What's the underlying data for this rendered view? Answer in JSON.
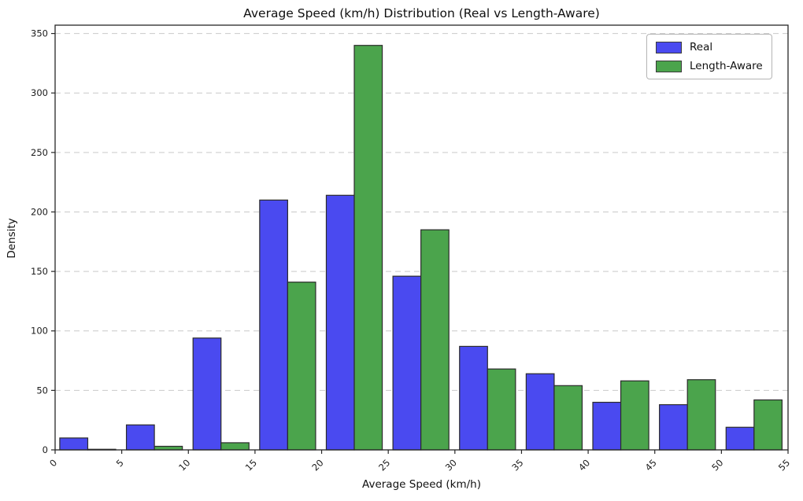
{
  "chart_data": {
    "type": "bar",
    "title": "Average Speed (km/h) Distribution (Real vs Length-Aware)",
    "xlabel": "Average Speed (km/h)",
    "ylabel": "Density",
    "bin_edges": [
      0,
      5,
      10,
      15,
      20,
      25,
      30,
      35,
      40,
      45,
      50,
      55
    ],
    "categories": [
      "0-5",
      "5-10",
      "10-15",
      "15-20",
      "20-25",
      "25-30",
      "30-35",
      "35-40",
      "40-45",
      "45-50",
      "50-55"
    ],
    "series": [
      {
        "name": "Real",
        "color": "#4a4af0",
        "values": [
          10,
          21,
          94,
          210,
          214,
          146,
          87,
          64,
          40,
          38,
          19
        ]
      },
      {
        "name": "Length-Aware",
        "color": "#4ba44c",
        "values": [
          0.5,
          3,
          6,
          141,
          340,
          185,
          68,
          54,
          58,
          59,
          42
        ]
      }
    ],
    "xlim": [
      0,
      55
    ],
    "ylim": [
      0,
      357
    ],
    "xticks": [
      0,
      5,
      10,
      15,
      20,
      25,
      30,
      35,
      40,
      45,
      50,
      55
    ],
    "yticks": [
      0,
      50,
      100,
      150,
      200,
      250,
      300,
      350
    ],
    "x_tick_rotation_deg": 45,
    "grid": "horizontal-dashed",
    "grid_color": "#c9c9c9",
    "spine_color": "#262626",
    "bar_edge_color": "#2b2b2b",
    "legend_position": "upper-right"
  }
}
